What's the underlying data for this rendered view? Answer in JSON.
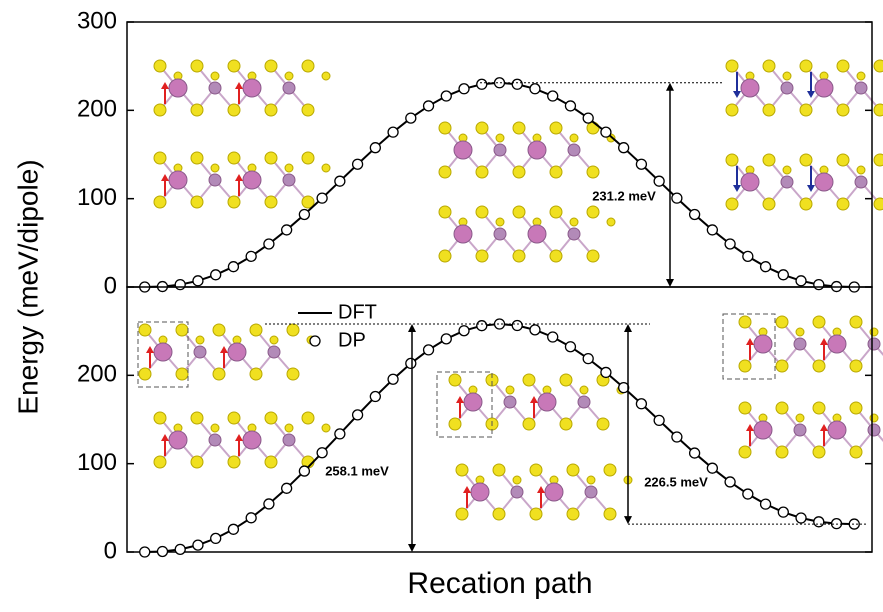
{
  "chart_data": [
    {
      "type": "line",
      "y_label": "Energy (meV/dipole)",
      "x": [
        0,
        1,
        2,
        3,
        4,
        5,
        6,
        7,
        8,
        9,
        10,
        11,
        12,
        13,
        14,
        15,
        16,
        17,
        18,
        19,
        20,
        21,
        22,
        23,
        24,
        25,
        26,
        27,
        28,
        29,
        30,
        31,
        32,
        33,
        34,
        35,
        36,
        37,
        38,
        39,
        40
      ],
      "xlim": [
        -1,
        41
      ],
      "ylim": [
        0,
        300
      ],
      "yticks": [
        0,
        100,
        200,
        300
      ],
      "series": [
        {
          "name": "DFT",
          "style": "line",
          "color": "#000000",
          "values": [
            0,
            0.5,
            2.7,
            7.0,
            13.8,
            23.0,
            34.7,
            48.7,
            64.6,
            82.1,
            100.6,
            119.8,
            139.0,
            157.7,
            175.3,
            191.2,
            205.0,
            216.2,
            224.4,
            229.5,
            231.2,
            229.5,
            224.4,
            216.2,
            205.0,
            191.2,
            175.3,
            157.7,
            139.0,
            119.8,
            100.6,
            82.1,
            64.6,
            48.7,
            34.7,
            23.0,
            13.8,
            7.0,
            2.7,
            0.5,
            0
          ]
        },
        {
          "name": "DP",
          "style": "marker",
          "color": "#000000",
          "values": [
            0,
            0.5,
            2.7,
            7.0,
            13.8,
            23.0,
            34.7,
            48.7,
            64.6,
            82.1,
            100.6,
            119.8,
            139.0,
            157.7,
            175.3,
            191.2,
            205.0,
            216.2,
            224.4,
            229.5,
            231.2,
            229.5,
            224.4,
            216.2,
            205.0,
            191.2,
            175.3,
            157.7,
            139.0,
            119.8,
            100.6,
            82.1,
            64.6,
            48.7,
            34.7,
            23.0,
            13.8,
            7.0,
            2.7,
            0.5,
            0
          ]
        }
      ],
      "annotations": [
        "231.2 meV"
      ],
      "legend": false
    },
    {
      "type": "line",
      "x_label": "Recation path",
      "x": [
        0,
        1,
        2,
        3,
        4,
        5,
        6,
        7,
        8,
        9,
        10,
        11,
        12,
        13,
        14,
        15,
        16,
        17,
        18,
        19,
        20,
        21,
        22,
        23,
        24,
        25,
        26,
        27,
        28,
        29,
        30,
        31,
        32,
        33,
        34,
        35,
        36,
        37,
        38,
        39,
        40
      ],
      "xlim": [
        -1,
        41
      ],
      "ylim": [
        0,
        300
      ],
      "yticks": [
        0,
        100,
        200
      ],
      "series": [
        {
          "name": "DFT",
          "style": "line",
          "color": "#000000",
          "values": [
            0,
            0.6,
            3.0,
            7.8,
            15.4,
            25.7,
            38.7,
            54.4,
            72.1,
            91.6,
            112.4,
            133.7,
            155.2,
            176.0,
            195.6,
            213.5,
            228.8,
            241.3,
            250.5,
            256.2,
            258.1,
            256.4,
            251.5,
            243.4,
            232.4,
            218.9,
            203.3,
            186.1,
            167.8,
            149.0,
            130.2,
            112.0,
            94.9,
            79.3,
            65.6,
            54.2,
            45.1,
            38.5,
            34.2,
            32.1,
            31.6
          ]
        },
        {
          "name": "DP",
          "style": "marker",
          "color": "#000000",
          "values": [
            0,
            0.6,
            3.0,
            7.8,
            15.4,
            25.7,
            38.7,
            54.4,
            72.1,
            91.6,
            112.4,
            133.7,
            155.2,
            176.0,
            195.6,
            213.5,
            228.8,
            241.3,
            250.5,
            256.2,
            258.1,
            256.4,
            251.5,
            243.4,
            232.4,
            218.9,
            203.3,
            186.1,
            167.8,
            149.0,
            130.2,
            112.0,
            94.9,
            79.3,
            65.6,
            54.2,
            45.1,
            38.5,
            34.2,
            32.1,
            31.6
          ]
        }
      ],
      "annotations": [
        "258.1 meV",
        "226.5 meV"
      ],
      "legend": true
    }
  ]
}
